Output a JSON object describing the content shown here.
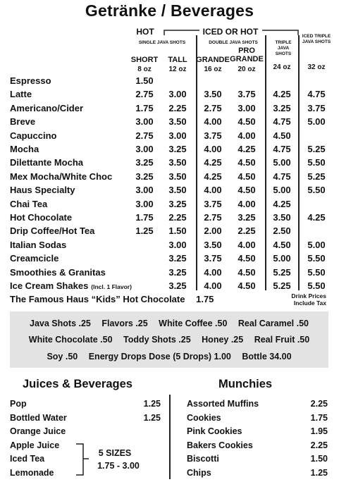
{
  "title": "Getränke / Beverages",
  "headers": {
    "hot": "HOT",
    "iced_or_hot": "ICED OR HOT",
    "single_java": "SINGLE JAVA SHOTS",
    "double_java": "DOUBLE JAVA SHOTS",
    "triple_java": "TRIPLE JAVA SHOTS",
    "iced_triple": "ICED TRIPLE JAVA SHOTS"
  },
  "sizes": [
    {
      "name": "SHORT",
      "oz": "8 oz"
    },
    {
      "name": "TALL",
      "oz": "12 oz"
    },
    {
      "name": "GRANDE",
      "oz": "16 oz"
    },
    {
      "name": "PRO GRANDE",
      "oz": "20 oz"
    },
    {
      "name": "",
      "oz": "24 oz"
    },
    {
      "name": "",
      "oz": "32 oz"
    }
  ],
  "drinks": [
    {
      "name": "Espresso",
      "note": "",
      "prices": [
        "1.50",
        "",
        "",
        "",
        "",
        ""
      ]
    },
    {
      "name": "Latte",
      "note": "",
      "prices": [
        "2.75",
        "3.00",
        "3.50",
        "3.75",
        "4.25",
        "4.75"
      ]
    },
    {
      "name": "Americano/Cider",
      "note": "",
      "prices": [
        "1.75",
        "2.25",
        "2.75",
        "3.00",
        "3.25",
        "3.75"
      ]
    },
    {
      "name": "Breve",
      "note": "",
      "prices": [
        "3.00",
        "3.50",
        "4.00",
        "4.50",
        "4.75",
        "5.00"
      ]
    },
    {
      "name": "Capuccino",
      "note": "",
      "prices": [
        "2.75",
        "3.00",
        "3.75",
        "4.00",
        "4.50",
        ""
      ]
    },
    {
      "name": "Mocha",
      "note": "",
      "prices": [
        "3.00",
        "3.25",
        "4.00",
        "4.25",
        "4.75",
        "5.25"
      ]
    },
    {
      "name": "Dilettante Mocha",
      "note": "",
      "prices": [
        "3.25",
        "3.50",
        "4.25",
        "4.50",
        "5.00",
        "5.50"
      ]
    },
    {
      "name": "Mex Mocha/White Choc",
      "note": "",
      "prices": [
        "3.25",
        "3.50",
        "4.25",
        "4.50",
        "4.75",
        "5.25"
      ]
    },
    {
      "name": "Haus Specialty",
      "note": "",
      "prices": [
        "3.00",
        "3.50",
        "4.00",
        "4.50",
        "5.00",
        "5.50"
      ]
    },
    {
      "name": "Chai Tea",
      "note": "",
      "prices": [
        "3.00",
        "3.25",
        "3.75",
        "4.00",
        "4.25",
        ""
      ]
    },
    {
      "name": "Hot Chocolate",
      "note": "",
      "prices": [
        "1.75",
        "2.25",
        "2.75",
        "3.25",
        "3.50",
        "4.25"
      ]
    },
    {
      "name": "Drip Coffee/Hot Tea",
      "note": "",
      "prices": [
        "1.25",
        "1.50",
        "2.00",
        "2.25",
        "2.50",
        ""
      ]
    },
    {
      "name": "Italian Sodas",
      "note": "",
      "prices": [
        "",
        "3.00",
        "3.50",
        "4.00",
        "4.50",
        "5.00"
      ]
    },
    {
      "name": "Creamcicle",
      "note": "",
      "prices": [
        "",
        "3.25",
        "3.75",
        "4.50",
        "5.00",
        "5.50"
      ]
    },
    {
      "name": "Smoothies & Granitas",
      "note": "",
      "prices": [
        "",
        "3.25",
        "4.00",
        "4.50",
        "5.25",
        "5.50"
      ]
    },
    {
      "name": "Ice Cream Shakes",
      "note": "(Incl. 1 Flavor)",
      "prices": [
        "",
        "3.25",
        "4.00",
        "4.50",
        "5.25",
        "5.50"
      ]
    }
  ],
  "famous": {
    "label": "The Famous Haus “Kids” Hot Chocolate",
    "price": "1.75"
  },
  "tax_note": [
    "Drink Prices",
    "Include Tax"
  ],
  "addons": [
    [
      "Java Shots .25",
      "Flavors .25",
      "White Coffee .50",
      "Real Caramel .50"
    ],
    [
      "White Chocolate .50",
      "Toddy Shots .25",
      "Honey .25",
      "Real Fruit .50"
    ],
    [
      "Soy .50",
      "Energy Drops Dose (5 Drops) 1.00",
      "Bottle 34.00"
    ]
  ],
  "juices": {
    "title": "Juices & Beverages",
    "items": [
      {
        "name": "Pop",
        "price": "1.25"
      },
      {
        "name": "Bottled Water",
        "price": "1.25"
      },
      {
        "name": "Orange Juice",
        "price": ""
      },
      {
        "name": "Apple Juice",
        "price": ""
      },
      {
        "name": "Iced Tea",
        "price": ""
      },
      {
        "name": "Lemonade",
        "price": ""
      }
    ],
    "sizes_label": "5 SIZES",
    "sizes_range": "1.75 - 3.00"
  },
  "munchies": {
    "title": "Munchies",
    "items": [
      {
        "name": "Assorted Muffins",
        "price": "2.25"
      },
      {
        "name": "Cookies",
        "price": "1.75"
      },
      {
        "name": "Pink Cookies",
        "price": "1.95"
      },
      {
        "name": "Bakers Cookies",
        "price": "2.25"
      },
      {
        "name": "Biscotti",
        "price": "1.50"
      },
      {
        "name": "Chips",
        "price": "1.25"
      }
    ]
  }
}
